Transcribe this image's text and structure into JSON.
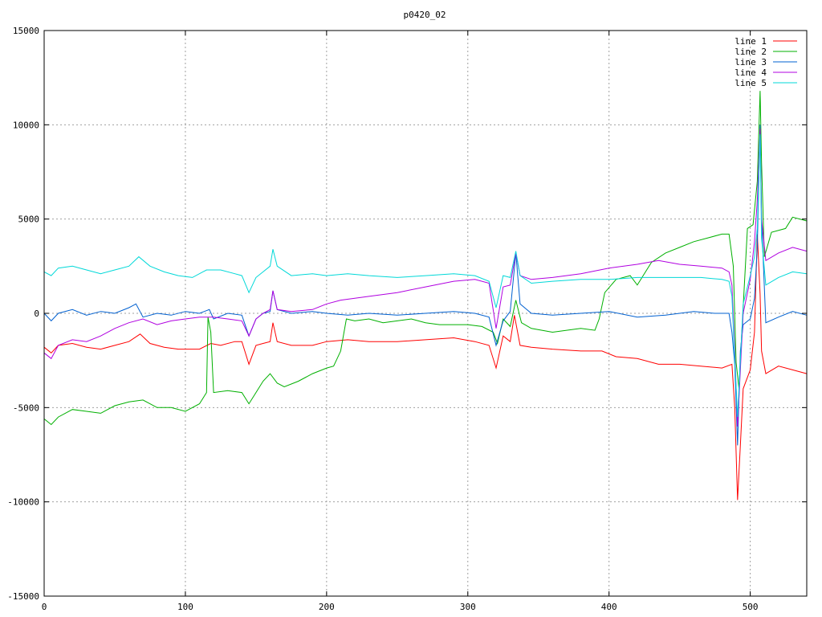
{
  "chart_data": {
    "type": "line",
    "title": "p0420_02",
    "xlabel": "",
    "ylabel": "",
    "xlim": [
      0,
      540
    ],
    "ylim": [
      -15000,
      15000
    ],
    "x_ticks": [
      0,
      100,
      200,
      300,
      400,
      500
    ],
    "y_ticks": [
      -15000,
      -10000,
      -5000,
      0,
      5000,
      10000,
      15000
    ],
    "grid": true,
    "legend_position": "top-right",
    "series": [
      {
        "name": "line 1",
        "color": "#ff0000",
        "points": [
          [
            0,
            -1800
          ],
          [
            5,
            -2100
          ],
          [
            10,
            -1700
          ],
          [
            20,
            -1600
          ],
          [
            30,
            -1800
          ],
          [
            40,
            -1900
          ],
          [
            50,
            -1700
          ],
          [
            60,
            -1500
          ],
          [
            68,
            -1100
          ],
          [
            75,
            -1600
          ],
          [
            85,
            -1800
          ],
          [
            95,
            -1900
          ],
          [
            110,
            -1900
          ],
          [
            118,
            -1600
          ],
          [
            125,
            -1700
          ],
          [
            135,
            -1500
          ],
          [
            140,
            -1500
          ],
          [
            145,
            -2700
          ],
          [
            150,
            -1700
          ],
          [
            155,
            -1600
          ],
          [
            160,
            -1500
          ],
          [
            162,
            -500
          ],
          [
            165,
            -1500
          ],
          [
            175,
            -1700
          ],
          [
            190,
            -1700
          ],
          [
            200,
            -1500
          ],
          [
            215,
            -1400
          ],
          [
            230,
            -1500
          ],
          [
            250,
            -1500
          ],
          [
            270,
            -1400
          ],
          [
            290,
            -1300
          ],
          [
            305,
            -1500
          ],
          [
            315,
            -1700
          ],
          [
            320,
            -2900
          ],
          [
            325,
            -1200
          ],
          [
            330,
            -1500
          ],
          [
            333,
            -100
          ],
          [
            337,
            -1700
          ],
          [
            345,
            -1800
          ],
          [
            360,
            -1900
          ],
          [
            380,
            -2000
          ],
          [
            395,
            -2000
          ],
          [
            405,
            -2300
          ],
          [
            420,
            -2400
          ],
          [
            435,
            -2700
          ],
          [
            450,
            -2700
          ],
          [
            465,
            -2800
          ],
          [
            480,
            -2900
          ],
          [
            487,
            -2700
          ],
          [
            489,
            -5000
          ],
          [
            491,
            -9900
          ],
          [
            493,
            -7000
          ],
          [
            495,
            -4000
          ],
          [
            500,
            -3000
          ],
          [
            503,
            -1000
          ],
          [
            505,
            4200
          ],
          [
            507,
            1000
          ],
          [
            508,
            -2000
          ],
          [
            511,
            -3200
          ],
          [
            520,
            -2800
          ],
          [
            530,
            -3000
          ],
          [
            540,
            -3200
          ]
        ]
      },
      {
        "name": "line 2",
        "color": "#00b000",
        "points": [
          [
            0,
            -5600
          ],
          [
            5,
            -5900
          ],
          [
            10,
            -5500
          ],
          [
            20,
            -5100
          ],
          [
            30,
            -5200
          ],
          [
            40,
            -5300
          ],
          [
            50,
            -4900
          ],
          [
            60,
            -4700
          ],
          [
            70,
            -4600
          ],
          [
            80,
            -5000
          ],
          [
            90,
            -5000
          ],
          [
            100,
            -5200
          ],
          [
            110,
            -4800
          ],
          [
            115,
            -4200
          ],
          [
            116,
            -200
          ],
          [
            118,
            -1000
          ],
          [
            120,
            -4200
          ],
          [
            130,
            -4100
          ],
          [
            140,
            -4200
          ],
          [
            145,
            -4800
          ],
          [
            150,
            -4200
          ],
          [
            155,
            -3600
          ],
          [
            160,
            -3200
          ],
          [
            165,
            -3700
          ],
          [
            170,
            -3900
          ],
          [
            180,
            -3600
          ],
          [
            190,
            -3200
          ],
          [
            200,
            -2900
          ],
          [
            205,
            -2800
          ],
          [
            210,
            -2000
          ],
          [
            214,
            -300
          ],
          [
            220,
            -400
          ],
          [
            230,
            -300
          ],
          [
            240,
            -500
          ],
          [
            250,
            -400
          ],
          [
            260,
            -300
          ],
          [
            270,
            -500
          ],
          [
            280,
            -600
          ],
          [
            300,
            -600
          ],
          [
            310,
            -700
          ],
          [
            318,
            -1000
          ],
          [
            321,
            -1600
          ],
          [
            325,
            -300
          ],
          [
            330,
            -700
          ],
          [
            334,
            700
          ],
          [
            338,
            -500
          ],
          [
            345,
            -800
          ],
          [
            360,
            -1000
          ],
          [
            380,
            -800
          ],
          [
            390,
            -900
          ],
          [
            393,
            -300
          ],
          [
            397,
            1100
          ],
          [
            405,
            1800
          ],
          [
            415,
            2000
          ],
          [
            420,
            1500
          ],
          [
            430,
            2700
          ],
          [
            440,
            3200
          ],
          [
            450,
            3500
          ],
          [
            460,
            3800
          ],
          [
            470,
            4000
          ],
          [
            480,
            4200
          ],
          [
            485,
            4200
          ],
          [
            488,
            2500
          ],
          [
            490,
            -2600
          ],
          [
            492,
            -4000
          ],
          [
            494,
            -1000
          ],
          [
            498,
            4500
          ],
          [
            502,
            4700
          ],
          [
            505,
            7000
          ],
          [
            507,
            11800
          ],
          [
            508,
            8000
          ],
          [
            510,
            3000
          ],
          [
            515,
            4300
          ],
          [
            525,
            4500
          ],
          [
            530,
            5100
          ],
          [
            540,
            4900
          ]
        ]
      },
      {
        "name": "line 3",
        "color": "#0060d0",
        "points": [
          [
            0,
            0
          ],
          [
            5,
            -400
          ],
          [
            10,
            0
          ],
          [
            20,
            200
          ],
          [
            30,
            -100
          ],
          [
            40,
            100
          ],
          [
            50,
            0
          ],
          [
            60,
            300
          ],
          [
            65,
            500
          ],
          [
            70,
            -200
          ],
          [
            80,
            0
          ],
          [
            90,
            -100
          ],
          [
            100,
            100
          ],
          [
            110,
            0
          ],
          [
            117,
            200
          ],
          [
            120,
            -300
          ],
          [
            130,
            0
          ],
          [
            140,
            -100
          ],
          [
            145,
            -1200
          ],
          [
            150,
            -300
          ],
          [
            155,
            0
          ],
          [
            160,
            100
          ],
          [
            162,
            1200
          ],
          [
            165,
            200
          ],
          [
            175,
            0
          ],
          [
            190,
            100
          ],
          [
            200,
            0
          ],
          [
            215,
            -100
          ],
          [
            230,
            0
          ],
          [
            250,
            -100
          ],
          [
            270,
            0
          ],
          [
            290,
            100
          ],
          [
            305,
            0
          ],
          [
            315,
            -200
          ],
          [
            320,
            -1700
          ],
          [
            325,
            -400
          ],
          [
            330,
            100
          ],
          [
            334,
            3200
          ],
          [
            337,
            500
          ],
          [
            345,
            0
          ],
          [
            360,
            -100
          ],
          [
            380,
            0
          ],
          [
            400,
            100
          ],
          [
            420,
            -200
          ],
          [
            440,
            -100
          ],
          [
            460,
            100
          ],
          [
            475,
            0
          ],
          [
            485,
            0
          ],
          [
            487,
            -1000
          ],
          [
            489,
            -2700
          ],
          [
            491,
            -7000
          ],
          [
            493,
            -2000
          ],
          [
            495,
            -600
          ],
          [
            500,
            -300
          ],
          [
            503,
            800
          ],
          [
            505,
            3500
          ],
          [
            507,
            10000
          ],
          [
            508,
            5000
          ],
          [
            511,
            -500
          ],
          [
            520,
            -200
          ],
          [
            530,
            100
          ],
          [
            540,
            -100
          ]
        ]
      },
      {
        "name": "line 4",
        "color": "#b000e0",
        "points": [
          [
            0,
            -2100
          ],
          [
            5,
            -2400
          ],
          [
            10,
            -1700
          ],
          [
            20,
            -1400
          ],
          [
            30,
            -1500
          ],
          [
            40,
            -1200
          ],
          [
            50,
            -800
          ],
          [
            60,
            -500
          ],
          [
            70,
            -300
          ],
          [
            80,
            -600
          ],
          [
            90,
            -400
          ],
          [
            100,
            -300
          ],
          [
            110,
            -200
          ],
          [
            120,
            -200
          ],
          [
            130,
            -300
          ],
          [
            140,
            -400
          ],
          [
            145,
            -1200
          ],
          [
            150,
            -300
          ],
          [
            155,
            0
          ],
          [
            160,
            200
          ],
          [
            162,
            1200
          ],
          [
            165,
            200
          ],
          [
            175,
            100
          ],
          [
            190,
            200
          ],
          [
            200,
            500
          ],
          [
            210,
            700
          ],
          [
            230,
            900
          ],
          [
            250,
            1100
          ],
          [
            270,
            1400
          ],
          [
            290,
            1700
          ],
          [
            305,
            1800
          ],
          [
            315,
            1600
          ],
          [
            320,
            -800
          ],
          [
            325,
            1400
          ],
          [
            330,
            1500
          ],
          [
            334,
            3200
          ],
          [
            337,
            2000
          ],
          [
            345,
            1800
          ],
          [
            360,
            1900
          ],
          [
            380,
            2100
          ],
          [
            400,
            2400
          ],
          [
            420,
            2600
          ],
          [
            435,
            2800
          ],
          [
            450,
            2600
          ],
          [
            465,
            2500
          ],
          [
            480,
            2400
          ],
          [
            485,
            2200
          ],
          [
            487,
            1500
          ],
          [
            489,
            -2000
          ],
          [
            491,
            -6000
          ],
          [
            493,
            -3000
          ],
          [
            495,
            0
          ],
          [
            500,
            1800
          ],
          [
            503,
            3800
          ],
          [
            505,
            6000
          ],
          [
            507,
            9800
          ],
          [
            508,
            5000
          ],
          [
            511,
            2800
          ],
          [
            520,
            3200
          ],
          [
            530,
            3500
          ],
          [
            540,
            3300
          ]
        ]
      },
      {
        "name": "line 5",
        "color": "#00d8d8",
        "points": [
          [
            0,
            2200
          ],
          [
            5,
            2000
          ],
          [
            10,
            2400
          ],
          [
            20,
            2500
          ],
          [
            30,
            2300
          ],
          [
            40,
            2100
          ],
          [
            50,
            2300
          ],
          [
            60,
            2500
          ],
          [
            67,
            3000
          ],
          [
            75,
            2500
          ],
          [
            85,
            2200
          ],
          [
            95,
            2000
          ],
          [
            105,
            1900
          ],
          [
            115,
            2300
          ],
          [
            125,
            2300
          ],
          [
            135,
            2100
          ],
          [
            140,
            2000
          ],
          [
            145,
            1100
          ],
          [
            150,
            1900
          ],
          [
            155,
            2200
          ],
          [
            160,
            2500
          ],
          [
            162,
            3400
          ],
          [
            165,
            2500
          ],
          [
            175,
            2000
          ],
          [
            190,
            2100
          ],
          [
            200,
            2000
          ],
          [
            215,
            2100
          ],
          [
            230,
            2000
          ],
          [
            250,
            1900
          ],
          [
            270,
            2000
          ],
          [
            290,
            2100
          ],
          [
            305,
            2000
          ],
          [
            315,
            1700
          ],
          [
            320,
            300
          ],
          [
            325,
            2000
          ],
          [
            330,
            1900
          ],
          [
            334,
            3300
          ],
          [
            337,
            2000
          ],
          [
            345,
            1600
          ],
          [
            360,
            1700
          ],
          [
            380,
            1800
          ],
          [
            400,
            1800
          ],
          [
            420,
            1900
          ],
          [
            435,
            1900
          ],
          [
            450,
            1900
          ],
          [
            465,
            1900
          ],
          [
            480,
            1800
          ],
          [
            485,
            1700
          ],
          [
            487,
            900
          ],
          [
            489,
            -2500
          ],
          [
            491,
            -5500
          ],
          [
            493,
            -2500
          ],
          [
            495,
            500
          ],
          [
            500,
            2000
          ],
          [
            503,
            3000
          ],
          [
            505,
            4500
          ],
          [
            507,
            9500
          ],
          [
            508,
            4000
          ],
          [
            511,
            1500
          ],
          [
            520,
            1900
          ],
          [
            530,
            2200
          ],
          [
            540,
            2100
          ]
        ]
      }
    ]
  }
}
